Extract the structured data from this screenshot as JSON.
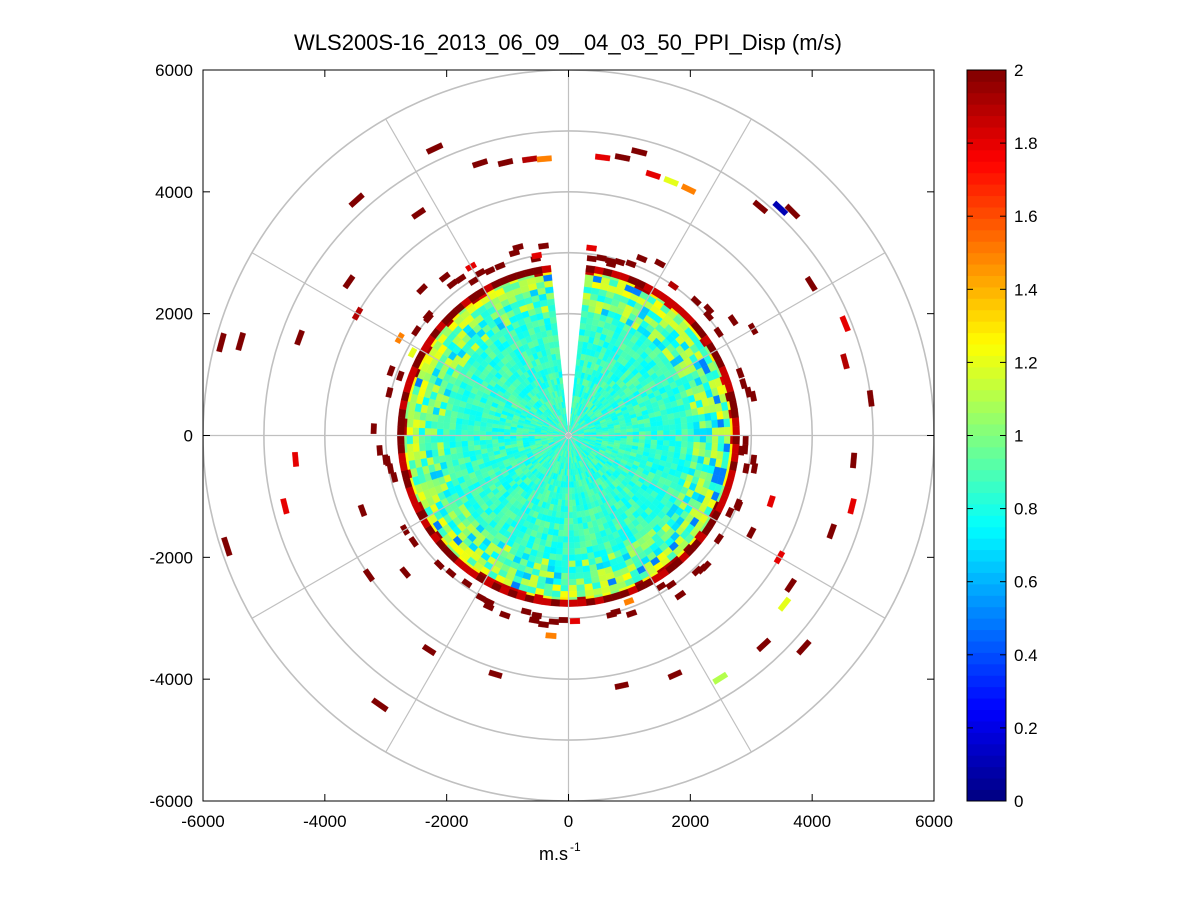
{
  "chart_data": {
    "type": "heatmap",
    "subtype": "polar-ppi",
    "title": "WLS200S-16_2013_06_09__04_03_50_PPI_Disp (m/s)",
    "xlabel": "m.s",
    "xlabel_superscript": "-1",
    "ylabel": "",
    "xlim": [
      -6000,
      6000
    ],
    "ylim": [
      -6000,
      6000
    ],
    "x_ticks": [
      -6000,
      -4000,
      -2000,
      0,
      2000,
      4000,
      6000
    ],
    "x_tick_labels": [
      "-6000",
      "-4000",
      "-2000",
      "0",
      "2000",
      "4000",
      "6000"
    ],
    "y_ticks": [
      6000,
      4000,
      2000,
      0,
      -2000,
      -4000,
      -6000
    ],
    "y_tick_labels": [
      "6000",
      "4000",
      "2000",
      "0",
      "-2000",
      "-4000",
      "-6000"
    ],
    "range_rings": [
      1000,
      2000,
      3000,
      4000,
      5000,
      6000
    ],
    "spokes_deg": [
      0,
      30,
      60,
      90,
      120,
      150,
      180,
      210,
      240,
      270,
      300,
      330
    ],
    "dense_region_radius": 2700,
    "sector_gap_deg": [
      -6,
      6
    ],
    "colorbar": {
      "min": 0,
      "max": 2,
      "ticks": [
        2,
        1.8,
        1.6,
        1.4,
        1.2,
        1,
        0.8,
        0.6,
        0.4,
        0.2,
        0
      ],
      "tick_labels": [
        "2",
        "1.8",
        "1.6",
        "1.4",
        "1.2",
        "1",
        "0.8",
        "0.6",
        "0.4",
        "0.2",
        "0"
      ],
      "colormap": "jet"
    },
    "outer_cells": [
      {
        "az": 335,
        "r": 5200,
        "v": 2
      },
      {
        "az": 342,
        "r": 4700,
        "v": 2
      },
      {
        "az": 347,
        "r": 4600,
        "v": 2
      },
      {
        "az": 352,
        "r": 4580,
        "v": 1.9
      },
      {
        "az": 355,
        "r": 4560,
        "v": 1.5
      },
      {
        "az": 7,
        "r": 4600,
        "v": 1.8
      },
      {
        "az": 11,
        "r": 4650,
        "v": 2
      },
      {
        "az": 14,
        "r": 4800,
        "v": 2
      },
      {
        "az": 18,
        "r": 4500,
        "v": 1.8
      },
      {
        "az": 22,
        "r": 4500,
        "v": 1.2
      },
      {
        "az": 26,
        "r": 4500,
        "v": 1.5
      },
      {
        "az": 40,
        "r": 4900,
        "v": 2
      },
      {
        "az": 43,
        "r": 5100,
        "v": 0.1
      },
      {
        "az": 45,
        "r": 5200,
        "v": 2
      },
      {
        "az": 58,
        "r": 4700,
        "v": 2
      },
      {
        "az": 68,
        "r": 4900,
        "v": 1.8
      },
      {
        "az": 75,
        "r": 4700,
        "v": 1.9
      },
      {
        "az": 83,
        "r": 5000,
        "v": 2
      },
      {
        "az": 95,
        "r": 4700,
        "v": 2
      },
      {
        "az": 104,
        "r": 4800,
        "v": 1.8
      },
      {
        "az": 110,
        "r": 4600,
        "v": 2
      },
      {
        "az": 120,
        "r": 4000,
        "v": 1.8
      },
      {
        "az": 124,
        "r": 4400,
        "v": 2
      },
      {
        "az": 128,
        "r": 4500,
        "v": 1.2
      },
      {
        "az": 132,
        "r": 5200,
        "v": 2
      },
      {
        "az": 137,
        "r": 4700,
        "v": 2
      },
      {
        "az": 148,
        "r": 4700,
        "v": 1.1
      },
      {
        "az": 156,
        "r": 4300,
        "v": 2
      },
      {
        "az": 168,
        "r": 4200,
        "v": 2
      },
      {
        "az": 197,
        "r": 4100,
        "v": 2
      },
      {
        "az": 215,
        "r": 5400,
        "v": 2
      },
      {
        "az": 213,
        "r": 4200,
        "v": 2
      },
      {
        "az": 235,
        "r": 4000,
        "v": 2
      },
      {
        "az": 252,
        "r": 5900,
        "v": 2
      },
      {
        "az": 256,
        "r": 4800,
        "v": 1.8
      },
      {
        "az": 265,
        "r": 4500,
        "v": 1.8
      },
      {
        "az": 285,
        "r": 5900,
        "v": 2
      },
      {
        "az": 286,
        "r": 5600,
        "v": 2
      },
      {
        "az": 290,
        "r": 4700,
        "v": 2
      },
      {
        "az": 300,
        "r": 4000,
        "v": 1.9
      },
      {
        "az": 305,
        "r": 4400,
        "v": 2
      },
      {
        "az": 318,
        "r": 5200,
        "v": 2
      },
      {
        "az": 326,
        "r": 4400,
        "v": 2
      },
      {
        "az": 108,
        "r": 3500,
        "v": 1.8
      },
      {
        "az": 118,
        "r": 3400,
        "v": 2
      },
      {
        "az": 60,
        "r": 3500,
        "v": 2
      },
      {
        "az": 250,
        "r": 3600,
        "v": 2
      },
      {
        "az": 230,
        "r": 3500,
        "v": 2
      }
    ],
    "ring_cells": [
      {
        "az": 345,
        "r": 3200,
        "v": 2
      },
      {
        "az": 350,
        "r": 3000,
        "v": 1.8
      },
      {
        "az": 7,
        "r": 3100,
        "v": 1.8
      },
      {
        "az": 14,
        "r": 2900,
        "v": 2
      },
      {
        "az": 20,
        "r": 3000,
        "v": 2
      },
      {
        "az": 28,
        "r": 3200,
        "v": 2
      },
      {
        "az": 35,
        "r": 3000,
        "v": 1.9
      },
      {
        "az": 48,
        "r": 3100,
        "v": 2
      },
      {
        "az": 55,
        "r": 3300,
        "v": 2
      },
      {
        "az": 70,
        "r": 3000,
        "v": 2
      },
      {
        "az": 78,
        "r": 3100,
        "v": 2
      },
      {
        "az": 100,
        "r": 3100,
        "v": 2
      },
      {
        "az": 112,
        "r": 3000,
        "v": 2
      },
      {
        "az": 135,
        "r": 3100,
        "v": 2
      },
      {
        "az": 145,
        "r": 3200,
        "v": 2
      },
      {
        "az": 165,
        "r": 3000,
        "v": 2
      },
      {
        "az": 178,
        "r": 3050,
        "v": 1.8
      },
      {
        "az": 190,
        "r": 3000,
        "v": 2
      },
      {
        "az": 205,
        "r": 3100,
        "v": 2
      },
      {
        "az": 225,
        "r": 3000,
        "v": 2
      },
      {
        "az": 240,
        "r": 3100,
        "v": 2
      },
      {
        "az": 262,
        "r": 3000,
        "v": 2
      },
      {
        "az": 272,
        "r": 3200,
        "v": 2
      },
      {
        "az": 290,
        "r": 3100,
        "v": 2
      },
      {
        "az": 300,
        "r": 3200,
        "v": 1.5
      },
      {
        "az": 315,
        "r": 3400,
        "v": 2
      },
      {
        "az": 322,
        "r": 3300,
        "v": 2
      },
      {
        "az": 330,
        "r": 3200,
        "v": 1.8
      },
      {
        "az": 338,
        "r": 3000,
        "v": 2
      },
      {
        "az": 298,
        "r": 2900,
        "v": 1.2
      },
      {
        "az": 310,
        "r": 3000,
        "v": 2
      },
      {
        "az": 95,
        "r": 2850,
        "v": 2
      },
      {
        "az": 160,
        "r": 2900,
        "v": 1.5
      },
      {
        "az": 185,
        "r": 3300,
        "v": 1.5
      }
    ]
  }
}
